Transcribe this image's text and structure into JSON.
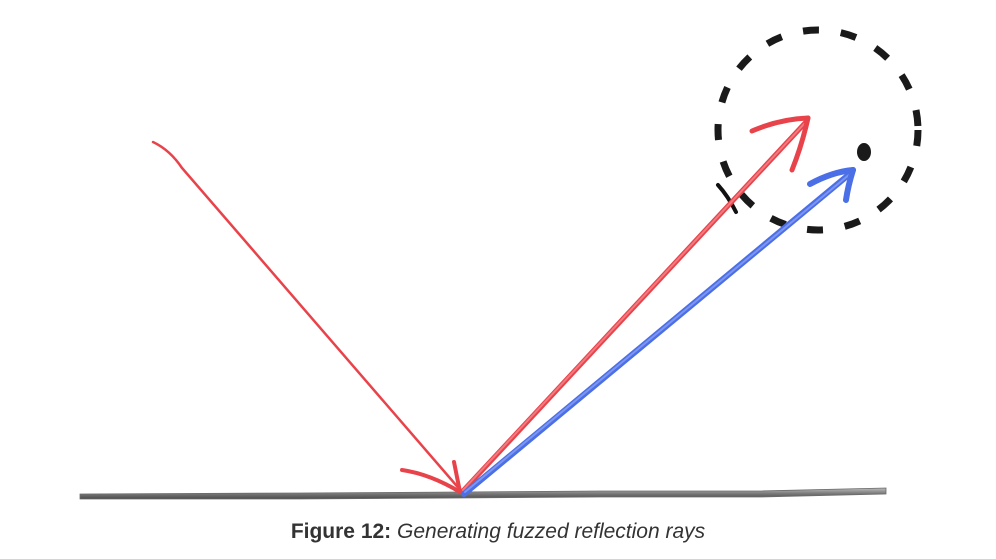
{
  "caption": {
    "label": "Figure 12:",
    "text": "Generating fuzzed reflection rays"
  },
  "colors": {
    "incident_ray": "#e8434a",
    "reflected_ray": "#e8434a",
    "fuzzed_ray": "#4a6fe6",
    "surface": "#8c8c8c",
    "fuzz_sphere": "#1a1a1a"
  },
  "icons": {
    "surface": "surface-line",
    "incident": "incident-ray-arrow",
    "reflected": "reflected-ray-arrow",
    "fuzzed": "fuzzed-ray-arrow",
    "sphere": "fuzz-sphere-dashed-circle"
  }
}
